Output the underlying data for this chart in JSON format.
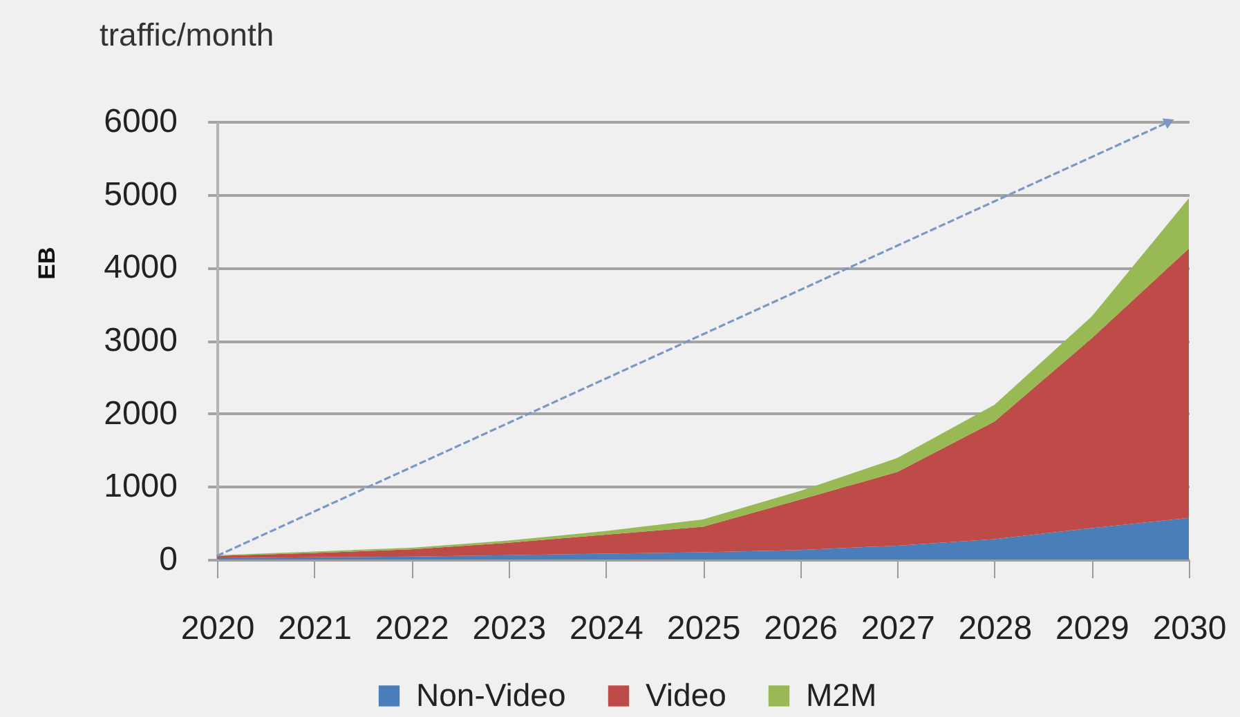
{
  "chart_data": {
    "type": "area",
    "title": "traffic/month",
    "ylabel": "EB",
    "x": [
      2020,
      2021,
      2022,
      2023,
      2024,
      2025,
      2026,
      2027,
      2028,
      2029,
      2030
    ],
    "xlim": [
      2020,
      2030
    ],
    "xticks": [
      2020,
      2021,
      2022,
      2023,
      2024,
      2025,
      2026,
      2027,
      2028,
      2029,
      2030
    ],
    "ylim": [
      0,
      6000
    ],
    "yticks": [
      0,
      1000,
      2000,
      3000,
      4000,
      5000,
      6000
    ],
    "stacked": true,
    "grid": "y",
    "legend": "bottom",
    "series": [
      {
        "name": "Non-Video",
        "color": "#4a7ebb",
        "values": [
          20,
          30,
          40,
          60,
          80,
          100,
          130,
          190,
          280,
          430,
          570
        ]
      },
      {
        "name": "Video",
        "color": "#be4b48",
        "values": [
          30,
          60,
          100,
          170,
          260,
          350,
          690,
          1010,
          1610,
          2600,
          3690
        ]
      },
      {
        "name": "M2M",
        "color": "#98b954",
        "values": [
          10,
          20,
          20,
          30,
          50,
          100,
          120,
          190,
          230,
          300,
          690
        ]
      },
      {
        "type": "line",
        "color": "#7b98c4",
        "line_style": "dashed",
        "x": [
          2020,
          2029.8
        ],
        "values": [
          50,
          6000
        ]
      }
    ]
  }
}
